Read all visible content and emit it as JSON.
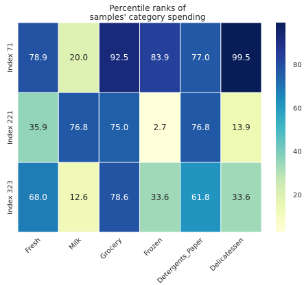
{
  "chart_data": {
    "type": "heatmap",
    "title": "Percentile ranks of\nsamples' category spending",
    "title_lines": [
      "Percentile ranks of",
      "samples' category spending"
    ],
    "columns": [
      "Fresh",
      "Milk",
      "Grocery",
      "Frozen",
      "Detergents_Paper",
      "Delicatessen"
    ],
    "rows": [
      "Index 71",
      "Index 221",
      "Index 323"
    ],
    "values": [
      [
        78.9,
        20.0,
        92.5,
        83.9,
        77.0,
        99.5
      ],
      [
        35.9,
        76.8,
        75.0,
        2.7,
        76.8,
        13.9
      ],
      [
        68.0,
        12.6,
        78.6,
        33.6,
        61.8,
        33.6
      ]
    ],
    "colormap": "YlGnBu",
    "colorbar": {
      "min": 0,
      "max": 100,
      "ticks": [
        20,
        40,
        60,
        80
      ]
    },
    "xlabel": "",
    "ylabel": ""
  }
}
